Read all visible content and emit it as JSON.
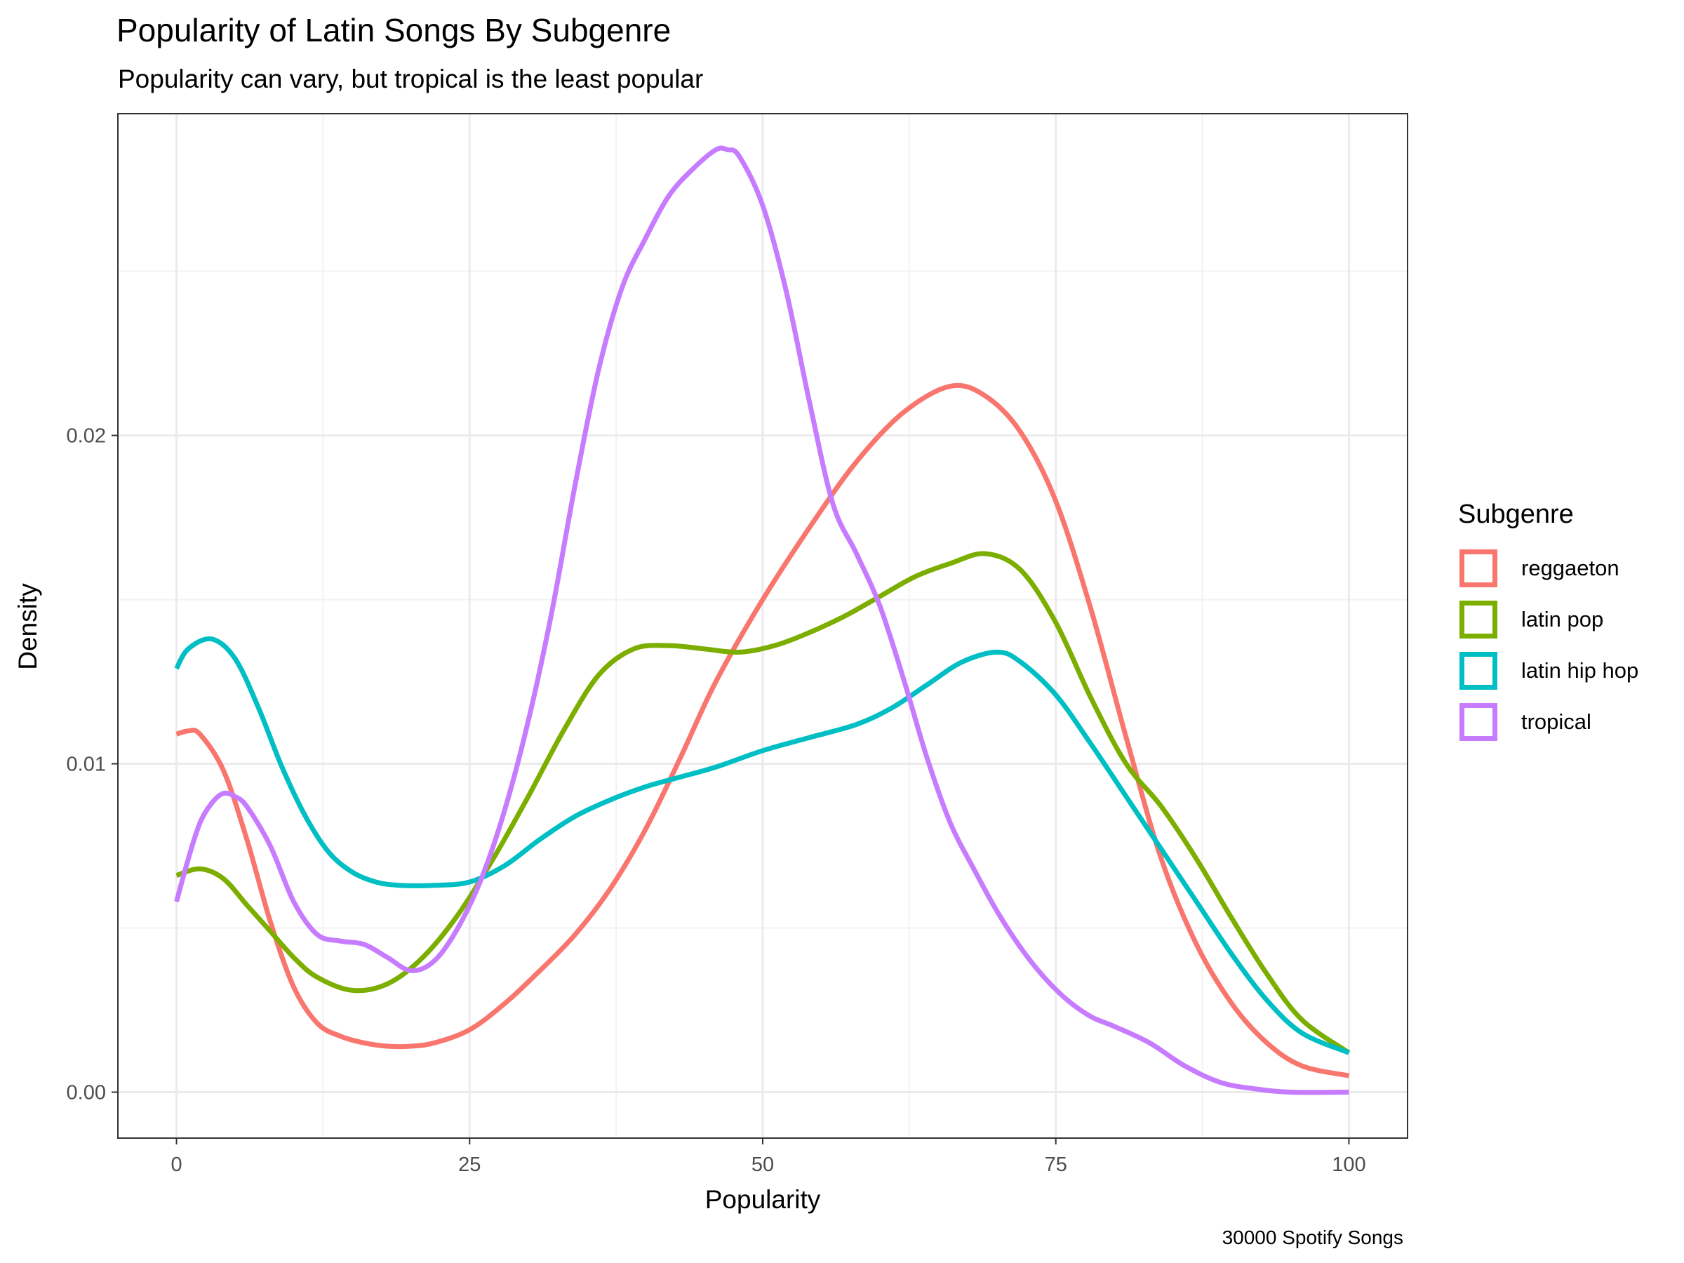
{
  "title": "Popularity of Latin Songs By Subgenre",
  "subtitle": "Popularity can vary, but tropical is the least popular",
  "caption": "30000 Spotify Songs",
  "legend_title": "Subgenre",
  "chart_data": {
    "type": "line",
    "title": "Popularity of Latin Songs By Subgenre",
    "subtitle": "Popularity can vary, but tropical is the least popular",
    "xlabel": "Popularity",
    "ylabel": "Density",
    "xlim": [
      -5,
      105
    ],
    "ylim": [
      -0.0014,
      0.0298
    ],
    "x_ticks": [
      0,
      25,
      50,
      75,
      100
    ],
    "x_tick_labels": [
      "0",
      "25",
      "50",
      "75",
      "100"
    ],
    "y_ticks": [
      0.0,
      0.01,
      0.02
    ],
    "y_tick_labels": [
      "0.00",
      "0.01",
      "0.02"
    ],
    "grid": true,
    "legend_position": "right",
    "series": [
      {
        "name": "reggaeton",
        "color": "#F8766D",
        "x": [
          0,
          1,
          2,
          4,
          6,
          8,
          10,
          12,
          14,
          16,
          18,
          20,
          22,
          25,
          28,
          31,
          34,
          37,
          40,
          43,
          46,
          50,
          54,
          58,
          62,
          66,
          69,
          72,
          75,
          78,
          81,
          84,
          87,
          90,
          93,
          96,
          100
        ],
        "y": [
          0.0109,
          0.011,
          0.0109,
          0.0098,
          0.0077,
          0.0052,
          0.0032,
          0.0021,
          0.0017,
          0.0015,
          0.0014,
          0.0014,
          0.0015,
          0.0019,
          0.0027,
          0.0037,
          0.0048,
          0.0062,
          0.008,
          0.0102,
          0.0125,
          0.015,
          0.0172,
          0.0192,
          0.0207,
          0.0215,
          0.0212,
          0.0201,
          0.018,
          0.0147,
          0.0108,
          0.0071,
          0.0045,
          0.0027,
          0.0015,
          0.0008,
          0.0005
        ]
      },
      {
        "name": "latin pop",
        "color": "#7CAE00",
        "x": [
          0,
          2,
          4,
          6,
          8,
          10,
          12,
          15,
          18,
          21,
          24,
          27,
          30,
          33,
          36,
          39,
          42,
          45,
          48,
          51,
          54,
          57,
          60,
          63,
          66,
          69,
          72,
          75,
          78,
          81,
          84,
          87,
          90,
          93,
          96,
          100
        ],
        "y": [
          0.0066,
          0.0068,
          0.0065,
          0.0057,
          0.0049,
          0.0041,
          0.0035,
          0.0031,
          0.0033,
          0.0041,
          0.0054,
          0.0071,
          0.009,
          0.011,
          0.0127,
          0.0135,
          0.0136,
          0.0135,
          0.0134,
          0.0136,
          0.014,
          0.0145,
          0.0151,
          0.0157,
          0.0161,
          0.0164,
          0.0159,
          0.0143,
          0.012,
          0.01,
          0.0087,
          0.0071,
          0.0053,
          0.0036,
          0.0022,
          0.0012
        ]
      },
      {
        "name": "latin hip hop",
        "color": "#00BFC4",
        "x": [
          0,
          1,
          3,
          5,
          7,
          9,
          11,
          13,
          15,
          17,
          19,
          22,
          25,
          28,
          31,
          34,
          37,
          40,
          43,
          46,
          50,
          54,
          58,
          61,
          64,
          67,
          70,
          72,
          75,
          78,
          81,
          84,
          87,
          90,
          93,
          96,
          100
        ],
        "y": [
          0.0129,
          0.0135,
          0.0138,
          0.0132,
          0.0117,
          0.0099,
          0.0084,
          0.0073,
          0.0067,
          0.0064,
          0.0063,
          0.0063,
          0.0064,
          0.0069,
          0.0077,
          0.0084,
          0.0089,
          0.0093,
          0.0096,
          0.0099,
          0.0104,
          0.0108,
          0.0112,
          0.0117,
          0.0124,
          0.0131,
          0.0134,
          0.0131,
          0.0121,
          0.0106,
          0.009,
          0.0074,
          0.0058,
          0.0042,
          0.0028,
          0.0018,
          0.0012
        ]
      },
      {
        "name": "tropical",
        "color": "#C77CFF",
        "x": [
          0,
          1,
          2,
          3,
          4,
          5,
          6,
          8,
          10,
          12,
          14,
          16,
          18,
          20,
          22,
          24,
          26,
          28,
          30,
          32,
          34,
          36,
          38,
          40,
          42,
          44,
          46,
          47,
          48,
          50,
          52,
          54,
          56,
          58,
          60,
          62,
          64,
          66,
          68,
          70,
          72,
          74,
          76,
          78,
          80,
          83,
          86,
          89,
          92,
          95,
          100
        ],
        "y": [
          0.0058,
          0.0071,
          0.0082,
          0.0088,
          0.0091,
          0.009,
          0.0087,
          0.0075,
          0.0058,
          0.0048,
          0.0046,
          0.0045,
          0.0041,
          0.0037,
          0.004,
          0.005,
          0.0065,
          0.0086,
          0.0113,
          0.0146,
          0.0185,
          0.022,
          0.0245,
          0.026,
          0.0273,
          0.0281,
          0.0287,
          0.0287,
          0.0285,
          0.027,
          0.0244,
          0.021,
          0.0179,
          0.0164,
          0.0148,
          0.0126,
          0.0102,
          0.0082,
          0.0068,
          0.0055,
          0.0044,
          0.0035,
          0.0028,
          0.0023,
          0.002,
          0.0015,
          0.0008,
          0.0003,
          0.0001,
          0.0,
          0.0
        ]
      }
    ]
  }
}
